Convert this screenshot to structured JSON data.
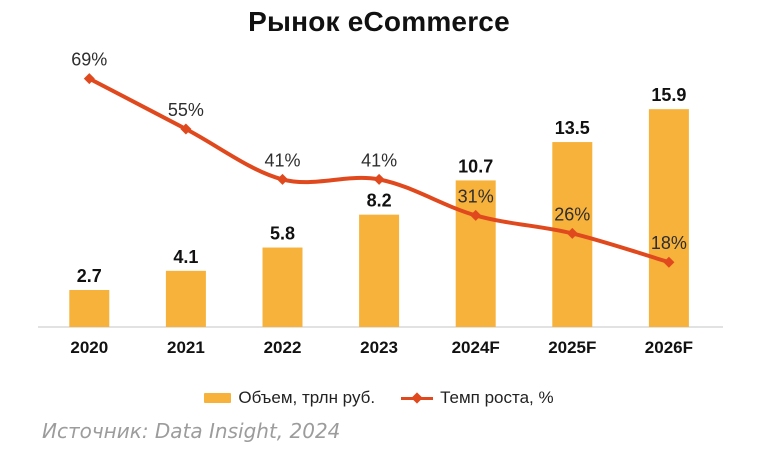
{
  "title": "Рынок eCommerce",
  "source": "Источник: Data Insight, 2024",
  "colors": {
    "bar": "#F7B23C",
    "line": "#E0491E",
    "bar_label": "#111111",
    "pct_label": "#2e2e2e",
    "category_label": "#111111",
    "axis": "#d9d9d9"
  },
  "legend": {
    "items": [
      {
        "label": "Объем, трлн руб.",
        "type": "bar"
      },
      {
        "label": "Темп роста, %",
        "type": "line"
      }
    ]
  },
  "chart_data": {
    "type": "bar+line combo",
    "title": "Рынок eCommerce",
    "categories": [
      "2020",
      "2021",
      "2022",
      "2023",
      "2024F",
      "2025F",
      "2026F"
    ],
    "series": [
      {
        "name": "Объем, трлн руб.",
        "type": "bar",
        "values": [
          2.7,
          4.1,
          5.8,
          8.2,
          10.7,
          13.5,
          15.9
        ],
        "labels": [
          "2.7",
          "4.1",
          "5.8",
          "8.2",
          "10.7",
          "13.5",
          "15.9"
        ]
      },
      {
        "name": "Темп роста, %",
        "type": "line",
        "values": [
          69,
          55,
          41,
          41,
          31,
          26,
          18
        ],
        "labels": [
          "69%",
          "55%",
          "41%",
          "41%",
          "31%",
          "26%",
          "18%"
        ]
      }
    ],
    "axes": {
      "x_axis_line": true,
      "y_axis_visible": false,
      "grid": false
    },
    "legend_position": "bottom"
  }
}
